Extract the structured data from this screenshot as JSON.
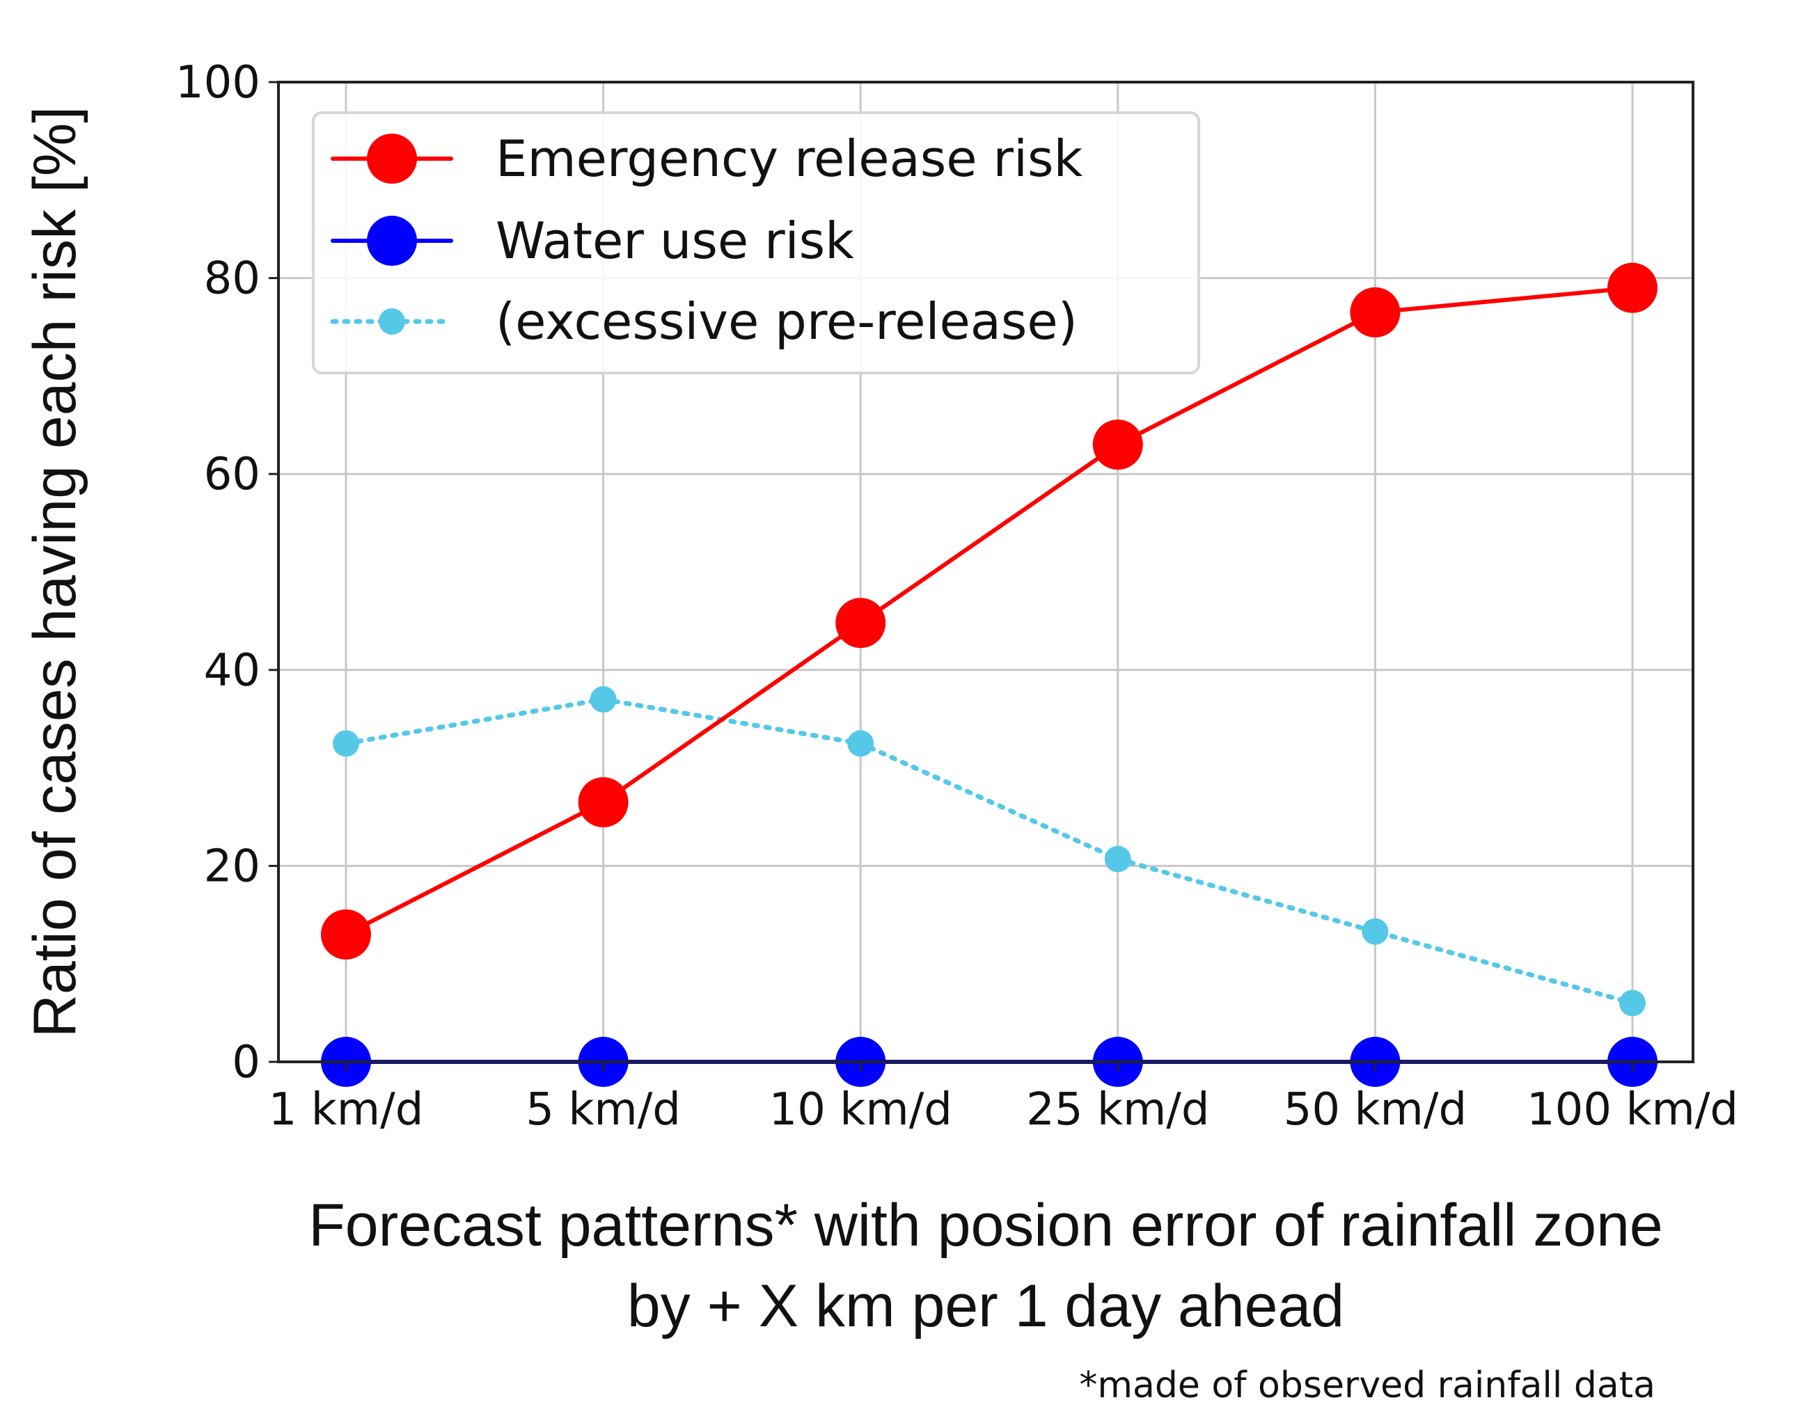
{
  "chart_data": {
    "type": "line",
    "title": "",
    "categories": [
      "1 km/d",
      "5 km/d",
      "10 km/d",
      "25 km/d",
      "50 km/d",
      "100 km/d"
    ],
    "ylabel": "Ratio of cases having each risk [%]",
    "xlabel_lines": [
      "Forecast patterns* with posion error of rainfall zone",
      "by + X km  per 1 day ahead"
    ],
    "footnote": "*made of observed rainfall data",
    "ylim": [
      0,
      100
    ],
    "yticks": [
      0,
      20,
      40,
      60,
      80,
      100
    ],
    "grid": true,
    "legend_position": "top-left",
    "series": [
      {
        "name": "Emergency release risk",
        "values": [
          13,
          26.5,
          44.8,
          63,
          76.5,
          79
        ],
        "color": "#ff0000",
        "line_style": "solid",
        "marker": "large-circle"
      },
      {
        "name": "Water use risk",
        "values": [
          0,
          0,
          0,
          0,
          0,
          0
        ],
        "color": "#0000ff",
        "line_style": "solid",
        "marker": "large-circle"
      },
      {
        "name": "(excessive pre-release)",
        "values": [
          32.5,
          37,
          32.5,
          20.7,
          13.3,
          6
        ],
        "color": "#55c8e8",
        "line_style": "dotted",
        "marker": "small-circle"
      }
    ]
  }
}
